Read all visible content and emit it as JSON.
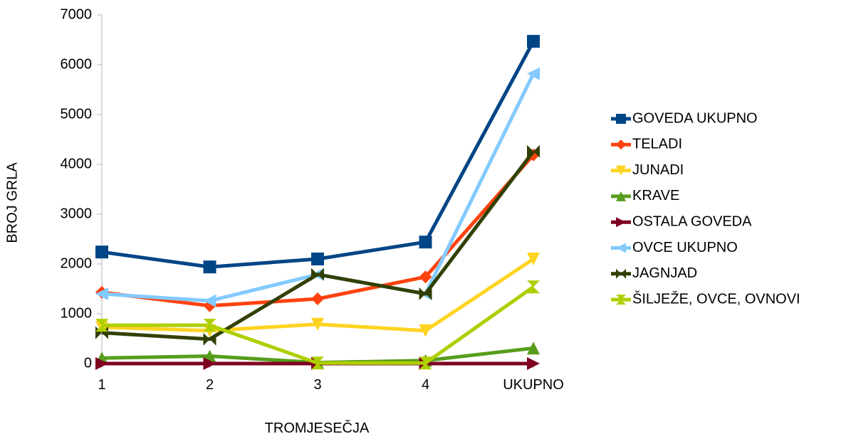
{
  "chart_data": {
    "type": "line",
    "title": "",
    "xlabel": "TROMJESEČJA",
    "ylabel": "BROJ GRLA",
    "categories": [
      "1",
      "2",
      "3",
      "4",
      "UKUPNO"
    ],
    "ylim": [
      0,
      7000
    ],
    "yticks": [
      0,
      1000,
      2000,
      3000,
      4000,
      5000,
      6000,
      7000
    ],
    "grid": false,
    "legend_position": "right",
    "series": [
      {
        "name": "GOVEDA UKUPNO",
        "color": "#004586",
        "marker": "square",
        "values": [
          2240,
          1940,
          2100,
          2440,
          6470
        ]
      },
      {
        "name": "TELADI",
        "color": "#ff420e",
        "marker": "diamond",
        "values": [
          1430,
          1160,
          1300,
          1740,
          4190
        ]
      },
      {
        "name": "JUNADI",
        "color": "#ffd320",
        "marker": "triangle-down",
        "values": [
          730,
          660,
          790,
          660,
          2100
        ]
      },
      {
        "name": "KRAVE",
        "color": "#579d1c",
        "marker": "triangle-up",
        "values": [
          110,
          150,
          20,
          60,
          310
        ]
      },
      {
        "name": "OSTALA GOVEDA",
        "color": "#7e0021",
        "marker": "triangle-right",
        "values": [
          0,
          0,
          0,
          0,
          0
        ]
      },
      {
        "name": "OVCE UKUPNO",
        "color": "#83caff",
        "marker": "triangle-left",
        "values": [
          1400,
          1260,
          1790,
          1400,
          5820
        ]
      },
      {
        "name": "JAGNJAD",
        "color": "#314004",
        "marker": "bowtie",
        "values": [
          620,
          490,
          1790,
          1400,
          4260
        ]
      },
      {
        "name": "ŠILJEŽE, OVCE, OVNOVI",
        "color": "#aecf00",
        "marker": "hourglass",
        "values": [
          770,
          770,
          10,
          10,
          1540
        ]
      }
    ]
  }
}
